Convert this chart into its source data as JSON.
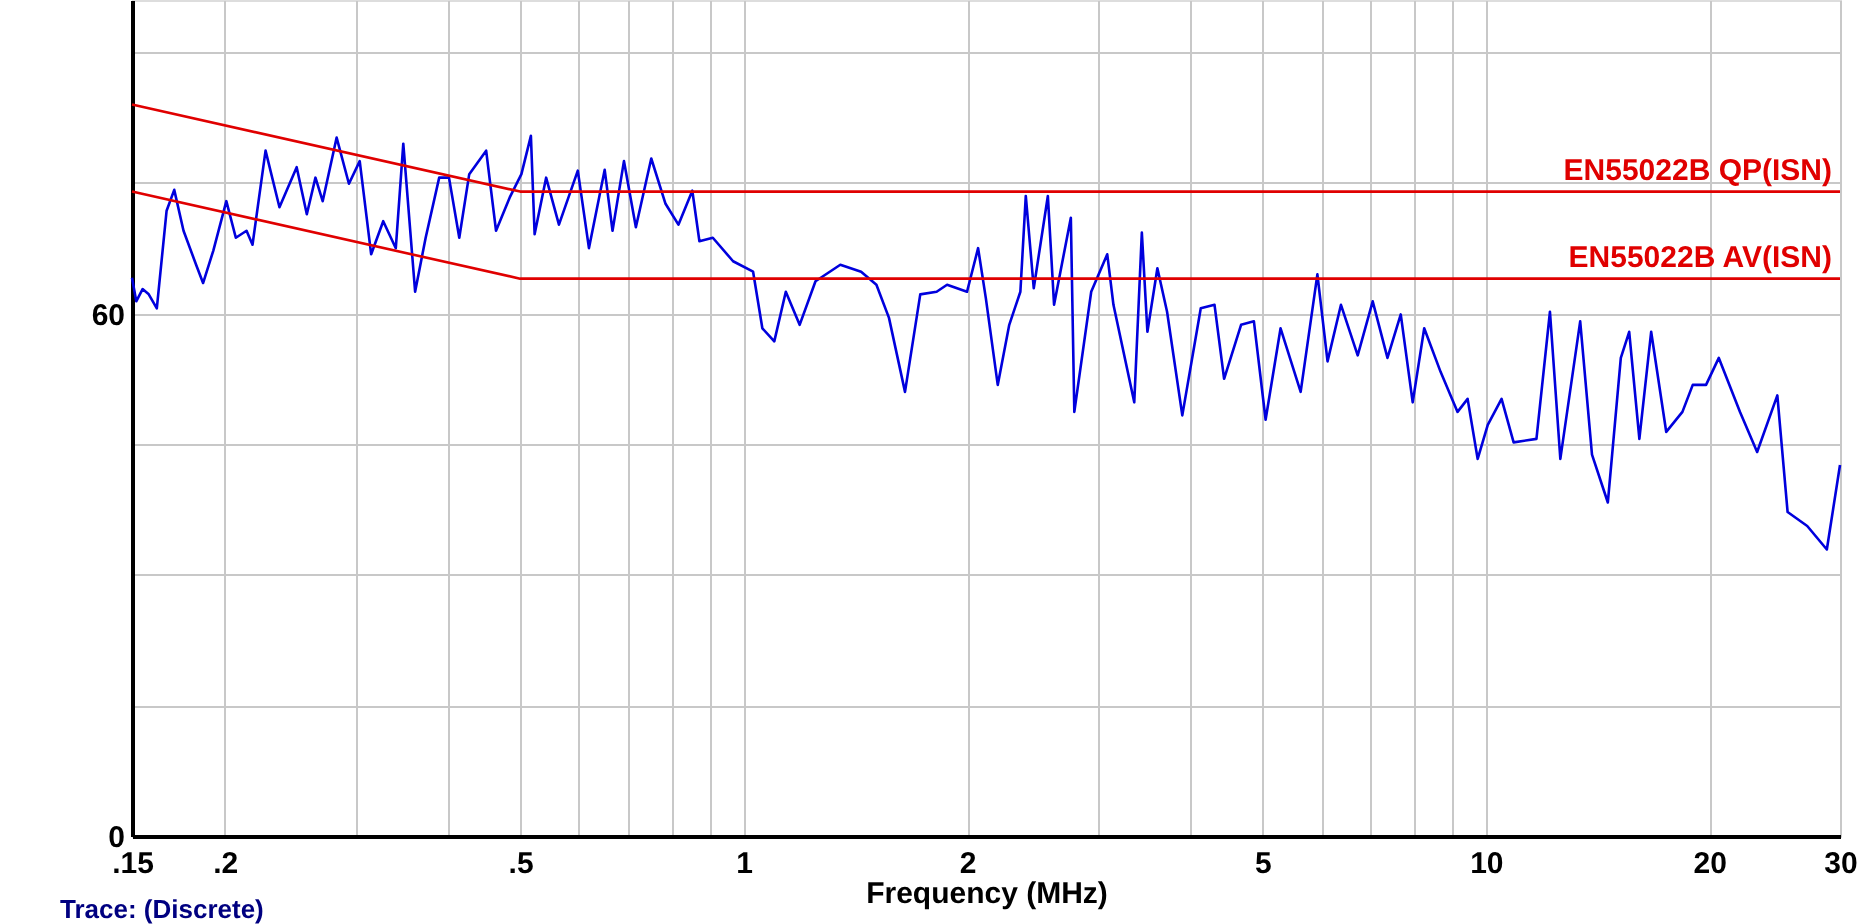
{
  "chart_data": {
    "type": "line",
    "xlabel": "Frequency (MHz)",
    "log": "x",
    "grid": true,
    "marker": "none",
    "line_style": "solid",
    "xlim": [
      0.15,
      30
    ],
    "ylim": [
      0,
      96
    ],
    "xticks": [
      {
        "value": 0.15,
        "label": ".15"
      },
      {
        "value": 0.2,
        "label": ".2"
      },
      {
        "value": 0.3,
        "label": null
      },
      {
        "value": 0.4,
        "label": null
      },
      {
        "value": 0.5,
        "label": ".5"
      },
      {
        "value": 0.6,
        "label": null
      },
      {
        "value": 0.7,
        "label": null
      },
      {
        "value": 0.8,
        "label": null
      },
      {
        "value": 0.9,
        "label": null
      },
      1,
      2,
      {
        "value": 3,
        "label": null
      },
      {
        "value": 4,
        "label": null
      },
      5,
      {
        "value": 6,
        "label": null
      },
      {
        "value": 7,
        "label": null
      },
      {
        "value": 8,
        "label": null
      },
      {
        "value": 9,
        "label": null
      },
      10,
      20,
      30
    ],
    "yticks": [
      0,
      {
        "value": 15,
        "label": null
      },
      {
        "value": 30,
        "label": null
      },
      {
        "value": 45,
        "label": null
      },
      60,
      {
        "value": 75,
        "label": null
      },
      {
        "value": 90,
        "label": null
      }
    ],
    "annotations": [
      "Trace: (Discrete)"
    ],
    "series": [
      {
        "color": "#0000dd",
        "x": [
          0.15,
          0.152,
          0.155,
          0.158,
          0.162,
          0.167,
          0.171,
          0.176,
          0.183,
          0.187,
          0.193,
          0.201,
          0.207,
          0.214,
          0.218,
          0.227,
          0.237,
          0.25,
          0.258,
          0.265,
          0.271,
          0.283,
          0.294,
          0.304,
          0.315,
          0.327,
          0.34,
          0.348,
          0.361,
          0.373,
          0.389,
          0.401,
          0.414,
          0.427,
          0.45,
          0.464,
          0.484,
          0.502,
          0.517,
          0.523,
          0.542,
          0.564,
          0.598,
          0.619,
          0.65,
          0.666,
          0.69,
          0.716,
          0.751,
          0.785,
          0.817,
          0.853,
          0.872,
          0.909,
          0.968,
          1.03,
          1.06,
          1.1,
          1.14,
          1.19,
          1.25,
          1.35,
          1.44,
          1.51,
          1.57,
          1.65,
          1.73,
          1.82,
          1.88,
          2.0,
          2.07,
          2.12,
          2.2,
          2.28,
          2.36,
          2.4,
          2.46,
          2.57,
          2.62,
          2.76,
          2.79,
          2.94,
          3.09,
          3.15,
          3.36,
          3.44,
          3.5,
          3.61,
          3.72,
          3.9,
          4.13,
          4.31,
          4.44,
          4.68,
          4.87,
          5.05,
          5.29,
          5.63,
          5.93,
          6.12,
          6.38,
          6.72,
          7.04,
          7.37,
          7.68,
          7.97,
          8.26,
          8.69,
          9.16,
          9.45,
          9.75,
          10.06,
          10.5,
          10.9,
          11.7,
          12.2,
          12.6,
          13.4,
          13.9,
          14.6,
          15.2,
          15.6,
          16.1,
          16.7,
          17.5,
          18.4,
          19.0,
          19.8,
          20.6,
          22.0,
          23.2,
          24.7,
          25.5,
          27.1,
          28.8,
          30.0
        ],
        "values": [
          64.1,
          61.4,
          62.8,
          62.2,
          60.6,
          71.8,
          74.2,
          69.5,
          65.6,
          63.5,
          67.2,
          72.9,
          68.7,
          69.5,
          67.9,
          78.7,
          72.2,
          76.8,
          71.4,
          75.6,
          72.9,
          80.2,
          74.9,
          77.5,
          66.8,
          70.6,
          67.5,
          79.5,
          62.5,
          68.7,
          75.6,
          75.6,
          68.7,
          76.0,
          78.7,
          69.5,
          73.3,
          76.0,
          80.4,
          69.1,
          75.6,
          70.2,
          76.4,
          67.5,
          76.5,
          69.5,
          77.5,
          69.9,
          77.8,
          72.6,
          70.2,
          74.1,
          68.3,
          68.7,
          66.0,
          64.8,
          58.3,
          56.8,
          62.5,
          58.7,
          63.7,
          65.6,
          64.8,
          63.3,
          59.5,
          51.0,
          62.2,
          62.5,
          63.3,
          62.5,
          67.5,
          61.8,
          51.8,
          58.7,
          62.5,
          73.5,
          62.9,
          73.5,
          61.0,
          71.0,
          48.7,
          62.5,
          66.8,
          61.0,
          49.8,
          69.3,
          57.9,
          65.2,
          60.2,
          48.3,
          60.6,
          61.0,
          52.5,
          58.7,
          59.1,
          47.8,
          58.3,
          51.0,
          64.5,
          54.5,
          61.0,
          55.2,
          61.4,
          54.9,
          59.9,
          49.8,
          58.3,
          53.3,
          48.7,
          50.2,
          43.3,
          47.2,
          50.2,
          45.2,
          45.6,
          60.2,
          43.3,
          59.1,
          43.8,
          38.3,
          54.9,
          57.9,
          45.6,
          57.9,
          46.4,
          48.7,
          51.8,
          51.8,
          54.9,
          48.7,
          44.1,
          50.6,
          37.2,
          35.6,
          32.9,
          42.6
        ]
      },
      {
        "name": "EN55022B QP(ISN)",
        "color": "#e00000",
        "x": [
          0.15,
          0.5,
          30
        ],
        "values": [
          84,
          74,
          74
        ]
      },
      {
        "name": "EN55022B AV(ISN)",
        "color": "#e00000",
        "x": [
          0.15,
          0.5,
          30
        ],
        "values": [
          74,
          64,
          64
        ]
      }
    ]
  }
}
